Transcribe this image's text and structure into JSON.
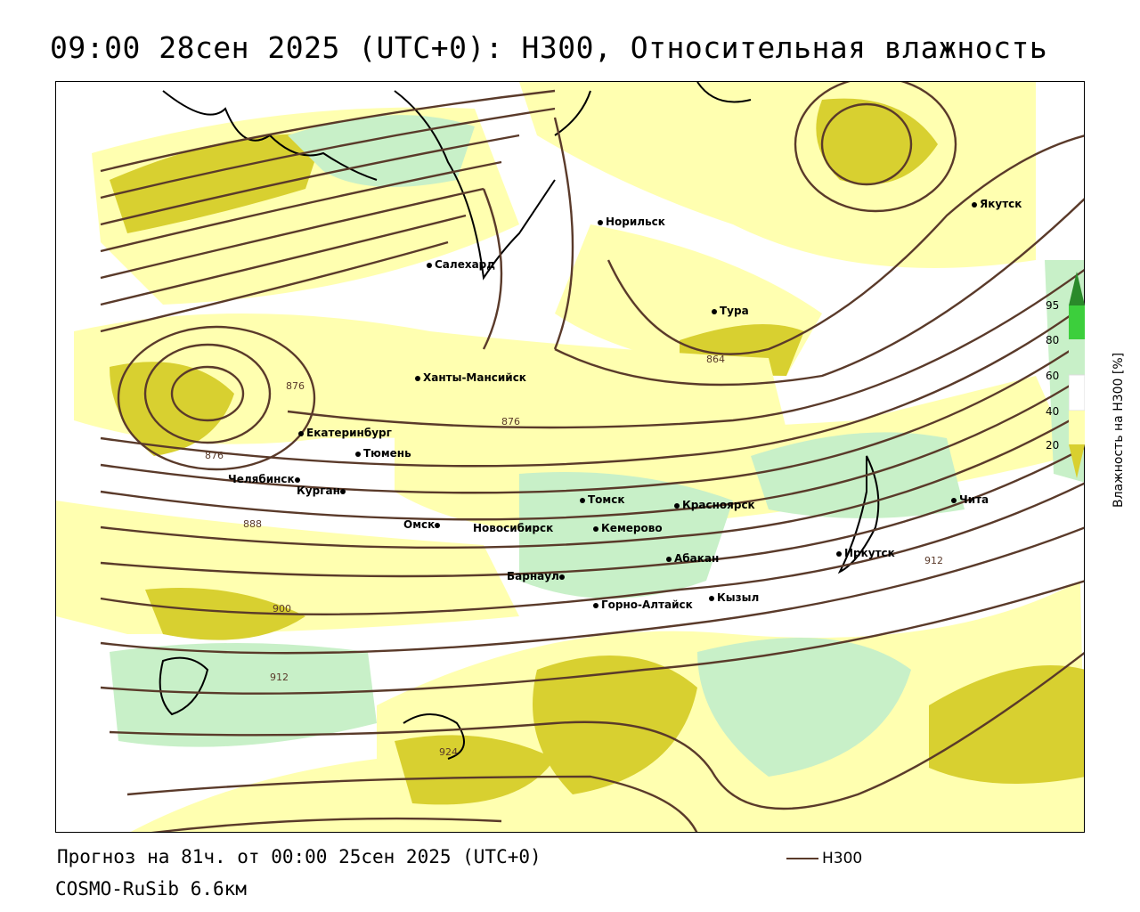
{
  "title": "09:00 28сен 2025 (UTC+0): H300, Относительная влажность",
  "footer": {
    "forecast": "Прогноз на 81ч. от 00:00 25сен 2025 (UTC+0)",
    "model": "COSMO-RuSib 6.6км",
    "legend_line_label": "H300"
  },
  "colorbar": {
    "title": "Влажность на Н300 [%]",
    "ticks": [
      "95",
      "80",
      "60",
      "40",
      "20"
    ],
    "colors": {
      "ge95": "#2a8a2a",
      "c80_95": "#3ccf3c",
      "c60_80": "#c8f0c8",
      "c40_60": "#ffffff",
      "c20_40": "#ffffb0",
      "lt20": "#d8d030"
    }
  },
  "contour_color": "#5a3a2a",
  "cities": [
    {
      "name": "Якутск"
    },
    {
      "name": "Норильск"
    },
    {
      "name": "Салехард"
    },
    {
      "name": "Тура"
    },
    {
      "name": "Ханты-Мансийск"
    },
    {
      "name": "Екатеринбург"
    },
    {
      "name": "Тюмень"
    },
    {
      "name": "Челябинск"
    },
    {
      "name": "Курган"
    },
    {
      "name": "Омск"
    },
    {
      "name": "Томск"
    },
    {
      "name": "Красноярск"
    },
    {
      "name": "Кемерово"
    },
    {
      "name": "Новосибирск"
    },
    {
      "name": "Абакан"
    },
    {
      "name": "Барнаул"
    },
    {
      "name": "Иркутск"
    },
    {
      "name": "Чита"
    },
    {
      "name": "Кызыл"
    },
    {
      "name": "Горно-Алтайск"
    }
  ],
  "contour_labels": [
    "864",
    "876",
    "876",
    "876",
    "888",
    "900",
    "912",
    "912",
    "924"
  ]
}
